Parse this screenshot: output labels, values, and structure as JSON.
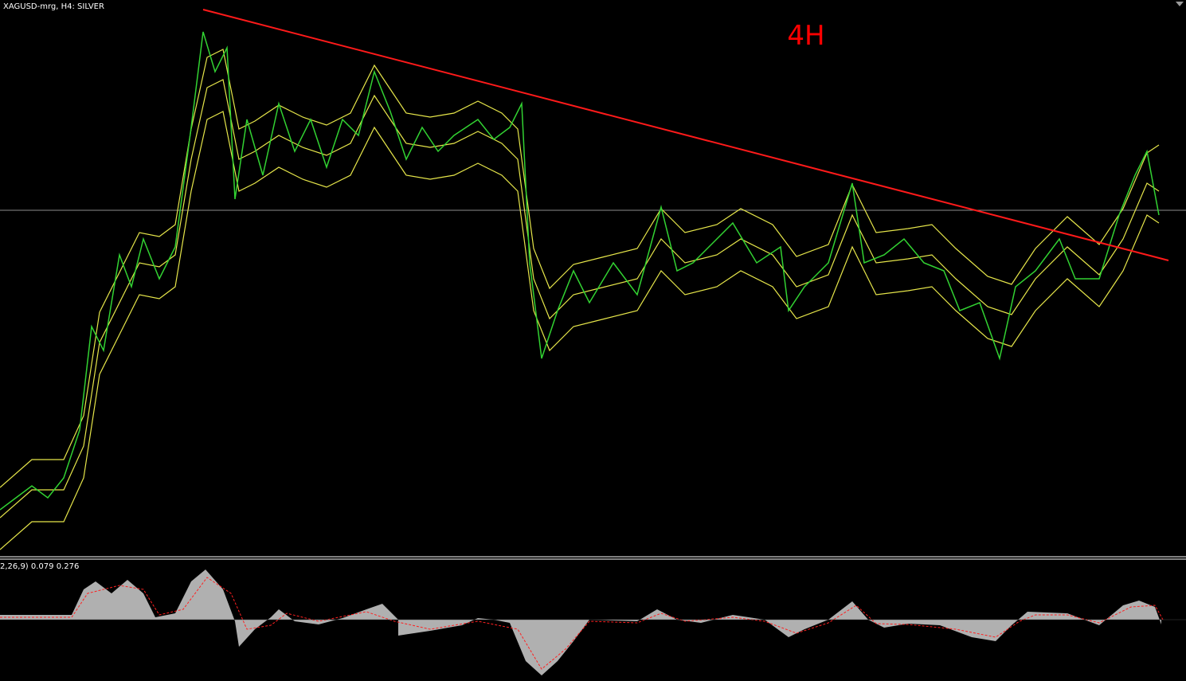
{
  "header": {
    "title": "XAGUSD-mrg, H4:  SILVER",
    "annotation": "4H"
  },
  "indicator": {
    "label": "2,26,9) 0.079 0.276"
  }
}
